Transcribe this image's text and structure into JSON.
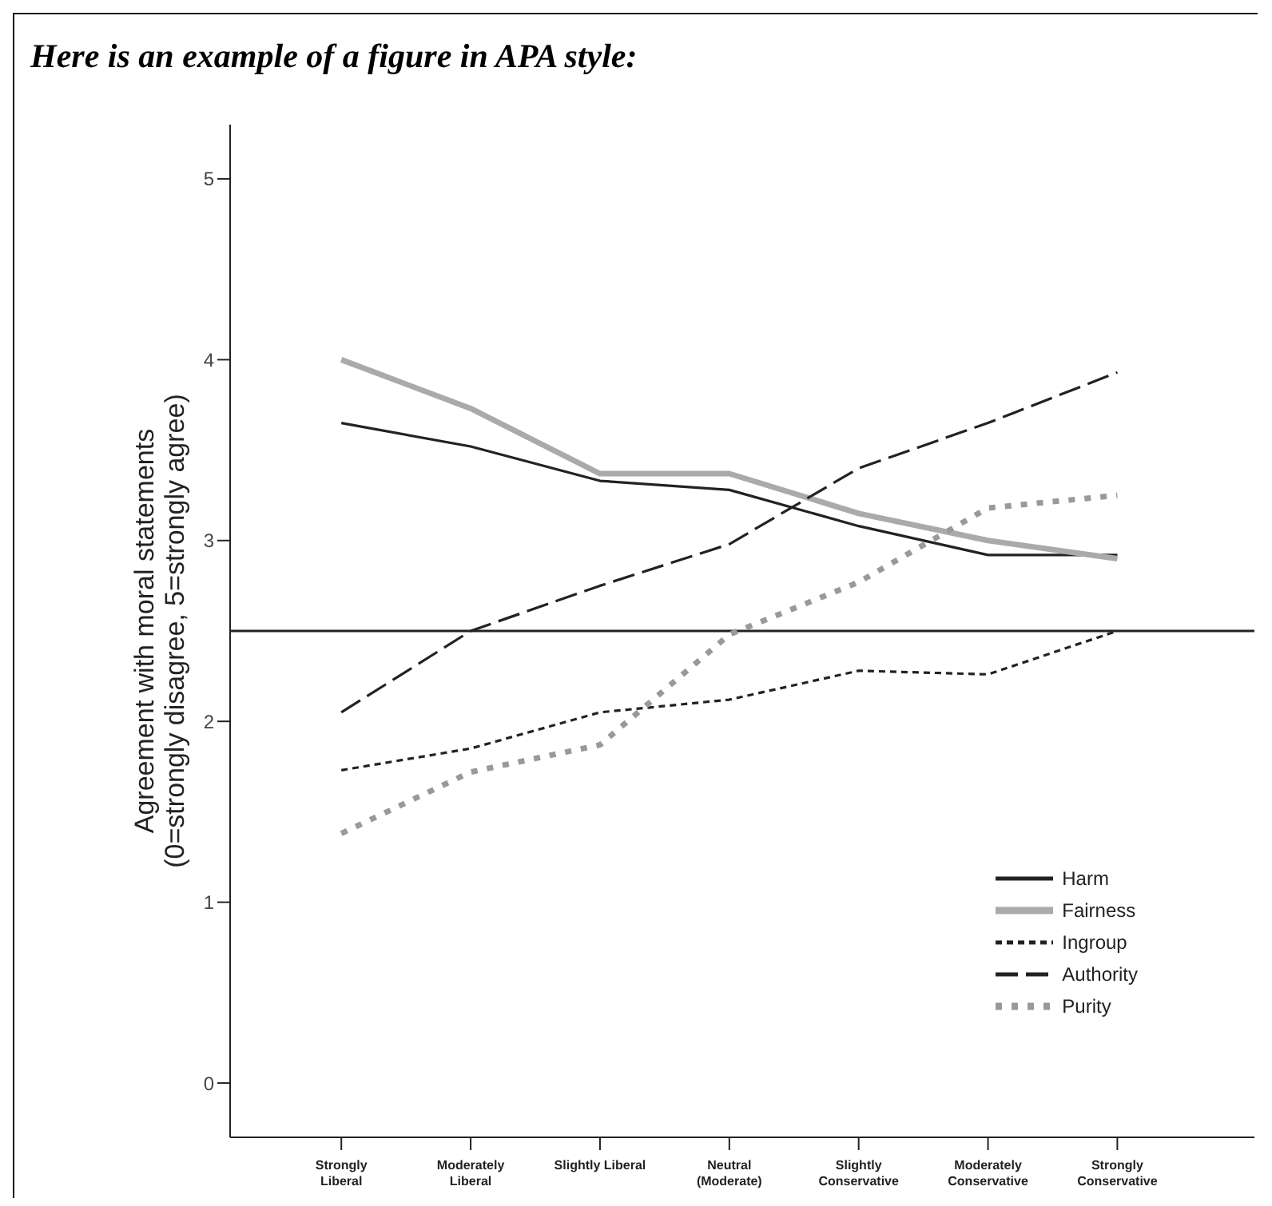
{
  "chart_data": {
    "type": "line",
    "title": "Here is an example of a figure in APA style:",
    "ylabel": "Agreement with moral statements\n(0=strongly disagree, 5=strongly agree)",
    "categories": [
      "Strongly\nLiberal",
      "Moderately\nLiberal",
      "Slightly Liberal",
      "Neutral\n(Moderate)",
      "Slightly\nConservative",
      "Moderately\nConservative",
      "Strongly\nConservative"
    ],
    "series": [
      {
        "name": "Harm",
        "color": "#222222",
        "line_style": "solid",
        "values": [
          3.65,
          3.52,
          3.33,
          3.28,
          3.08,
          2.92,
          2.92
        ]
      },
      {
        "name": "Fairness",
        "color": "#aaaaaa",
        "line_style": "solid",
        "values": [
          4.0,
          3.73,
          3.37,
          3.37,
          3.15,
          3.0,
          2.9
        ]
      },
      {
        "name": "Ingroup",
        "color": "#222222",
        "line_style": "dotted",
        "values": [
          1.73,
          1.85,
          2.05,
          2.12,
          2.28,
          2.26,
          2.5
        ]
      },
      {
        "name": "Authority",
        "color": "#222222",
        "line_style": "dashed",
        "values": [
          2.05,
          2.5,
          2.75,
          2.98,
          3.4,
          3.65,
          3.93
        ]
      },
      {
        "name": "Purity",
        "color": "#999999",
        "line_style": "dotted",
        "values": [
          1.38,
          1.72,
          1.87,
          2.48,
          2.77,
          3.18,
          3.25
        ]
      }
    ],
    "ylim": [
      -0.3,
      5.3
    ],
    "yticks": [
      0,
      1,
      2,
      3,
      4,
      5
    ],
    "ref_lines": [
      {
        "axis": "y",
        "value": 2.5,
        "color": "#222222"
      }
    ],
    "grid": false,
    "legend": "bottom right",
    "marker": "none"
  }
}
